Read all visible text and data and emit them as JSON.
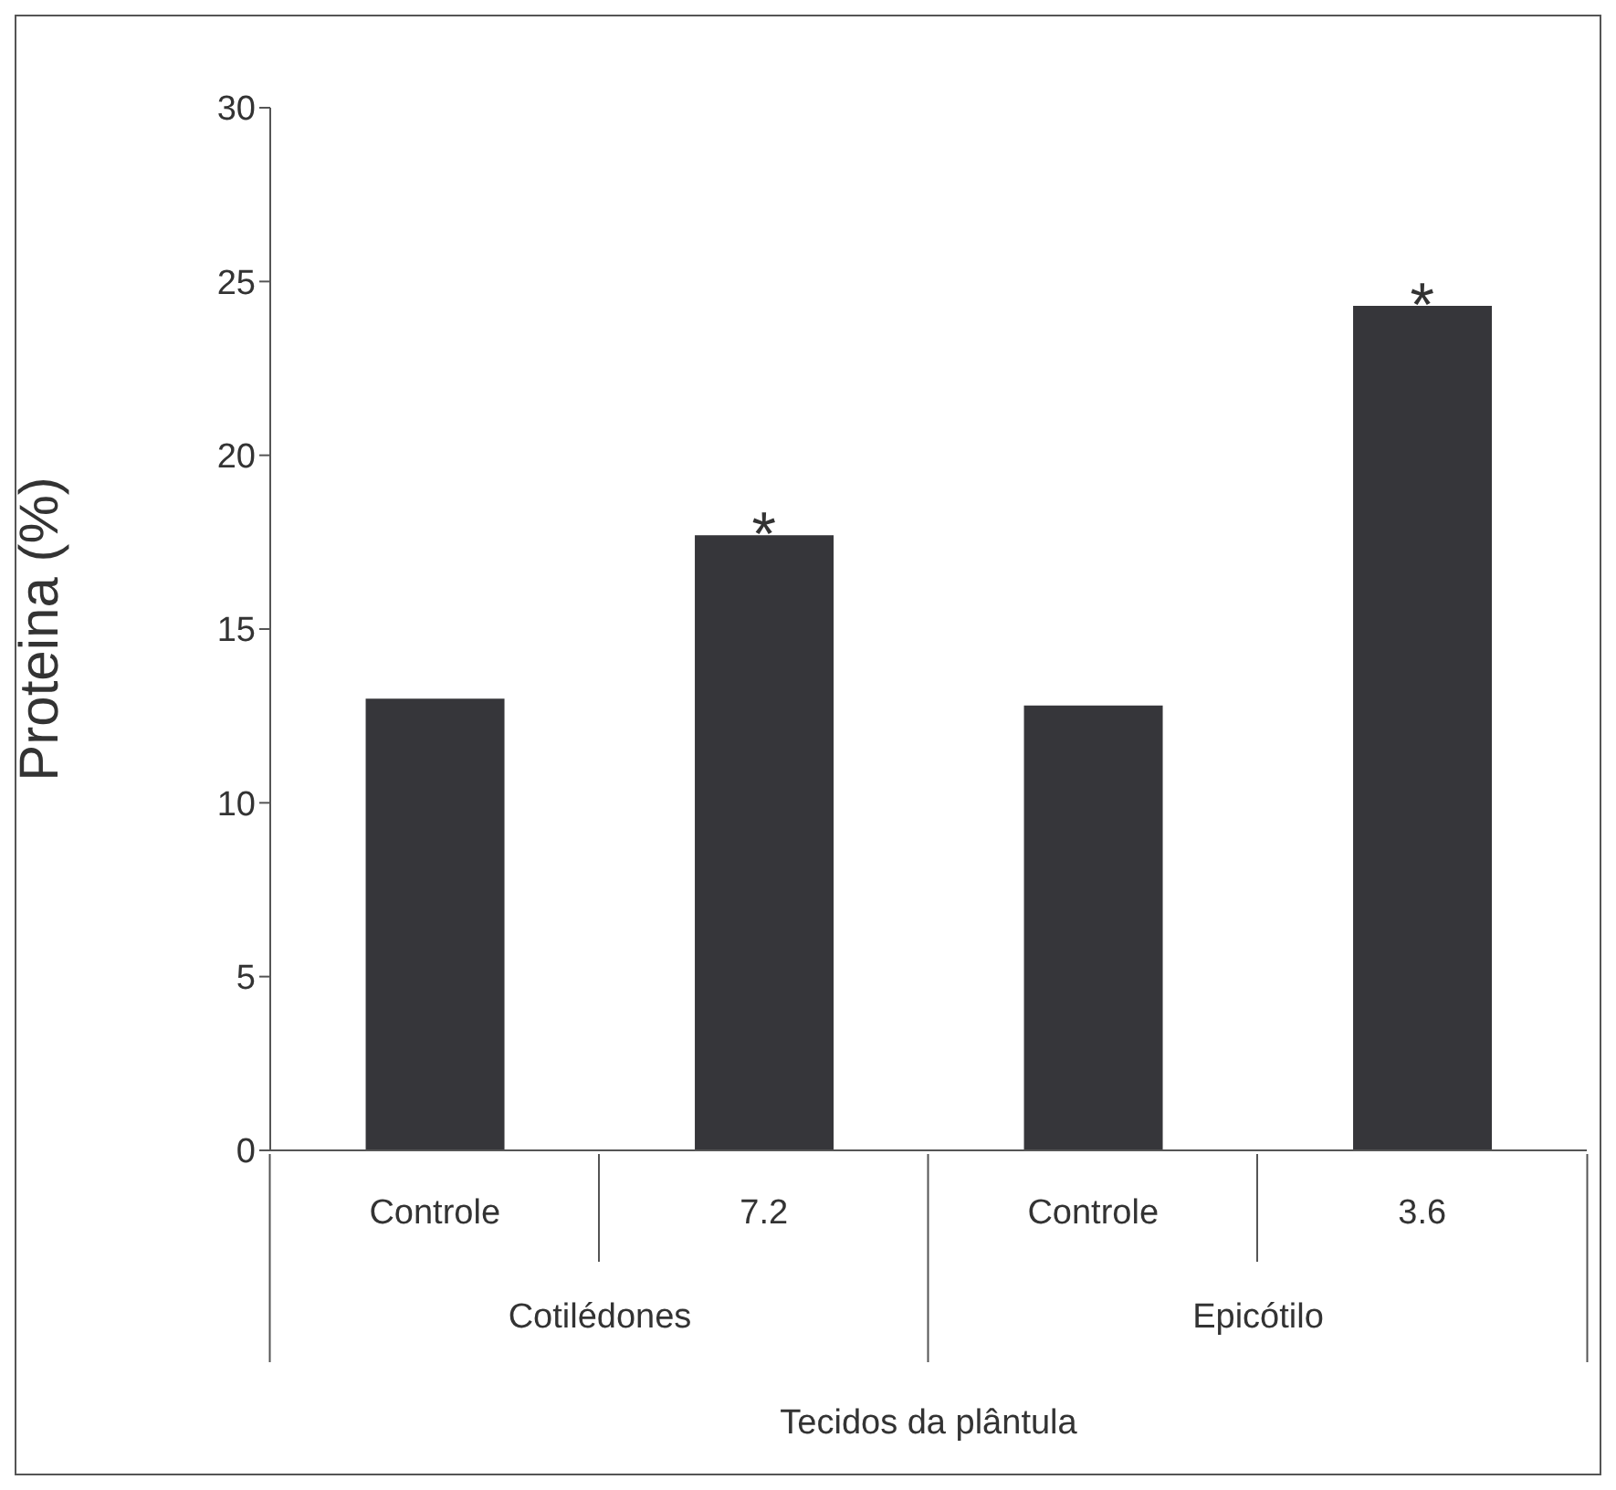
{
  "chart_data": {
    "type": "bar",
    "xlabel": "Tecidos da plântula",
    "ylabel": "Proteina (%)",
    "categories": [
      "Controle",
      "7.2",
      "Controle",
      "3.6"
    ],
    "values": [
      13.0,
      17.7,
      12.8,
      24.3
    ],
    "color": "#36363a",
    "ylim": [
      0,
      30
    ],
    "yticks": [
      0,
      5,
      10,
      15,
      20,
      25,
      30
    ],
    "grid": false,
    "legend": false,
    "annotations": [
      {
        "text": "*",
        "x": "7.2",
        "y": 17.7
      },
      {
        "text": "*",
        "x": "3.6",
        "y": 24.3
      },
      "Cotilédones",
      "Epicótilo"
    ]
  }
}
